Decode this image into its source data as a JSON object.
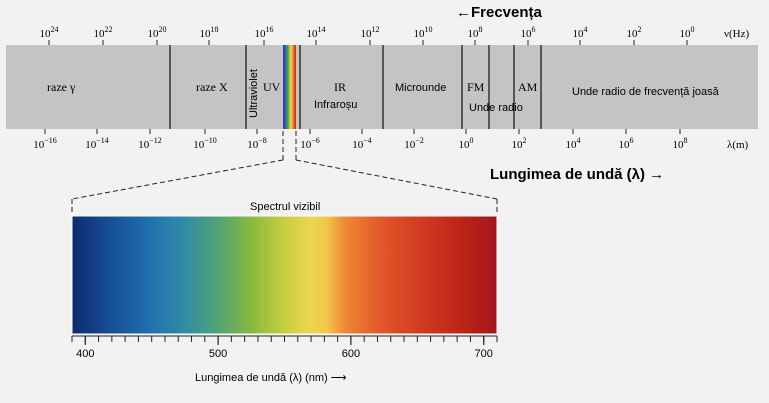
{
  "frequency_title": "←Frecvența",
  "frequency_unit": "ν(Hz)",
  "frequency_ticks": [
    {
      "base": "10",
      "exp": "24"
    },
    {
      "base": "10",
      "exp": "22"
    },
    {
      "base": "10",
      "exp": "20"
    },
    {
      "base": "10",
      "exp": "18"
    },
    {
      "base": "10",
      "exp": "16"
    },
    {
      "base": "10",
      "exp": "14"
    },
    {
      "base": "10",
      "exp": "12"
    },
    {
      "base": "10",
      "exp": "10"
    },
    {
      "base": "10",
      "exp": "8"
    },
    {
      "base": "10",
      "exp": "6"
    },
    {
      "base": "10",
      "exp": "4"
    },
    {
      "base": "10",
      "exp": "2"
    },
    {
      "base": "10",
      "exp": "0"
    }
  ],
  "wavelength_unit": "λ(m)",
  "wavelength_ticks": [
    {
      "base": "10",
      "exp": "−16"
    },
    {
      "base": "10",
      "exp": "−14"
    },
    {
      "base": "10",
      "exp": "−12"
    },
    {
      "base": "10",
      "exp": "−10"
    },
    {
      "base": "10",
      "exp": "−8"
    },
    {
      "base": "10",
      "exp": "−6"
    },
    {
      "base": "10",
      "exp": "−4"
    },
    {
      "base": "10",
      "exp": "−2"
    },
    {
      "base": "10",
      "exp": "0"
    },
    {
      "base": "10",
      "exp": "2"
    },
    {
      "base": "10",
      "exp": "4"
    },
    {
      "base": "10",
      "exp": "6"
    },
    {
      "base": "10",
      "exp": "8"
    }
  ],
  "wavelength_title": "Lungimea de undă (λ) →",
  "bands": {
    "gamma": "raze γ",
    "xray": "raze X",
    "uv_vertical": "Ultraviolet",
    "uv": "UV",
    "ir": "IR",
    "ir_sub": "Infraroșu",
    "microwave": "Microunde",
    "fm": "FM",
    "am": "AM",
    "radio": "Unde radio",
    "low_freq_radio": "Unde radio de frecvență joasă"
  },
  "visible_title": "Spectrul vizibil",
  "visible_ticks": [
    "400",
    "500",
    "600",
    "700"
  ],
  "visible_axis_label": "Lungimea de undă  (λ)  (nm) ⟶",
  "colors": {
    "band_fill": "#c4c4c4",
    "violet": "#2a2d8a",
    "blue": "#1e5aa8",
    "green": "#7ab53a",
    "yellow": "#e9d24a",
    "orange": "#e8682c",
    "red": "#c41d1d"
  }
}
